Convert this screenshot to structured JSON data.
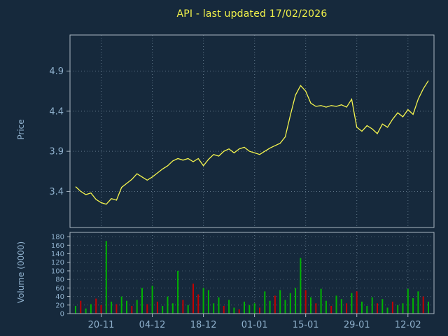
{
  "colors": {
    "background": "#16293c",
    "title": "#f2f24a",
    "axis_text": "#8fb0cc",
    "grid": "#5f7588",
    "border": "#a9b6c2",
    "price_line": "#f5f54e",
    "volume_up": "#00b400",
    "volume_down": "#c40000"
  },
  "chart_data": [
    {
      "type": "line",
      "name": "price-series",
      "title": "API - last updated 17/02/2026",
      "ylabel": "Price",
      "xlabel": "",
      "ylim": [
        2.95,
        5.35
      ],
      "yticks": [
        3.4,
        3.9,
        4.4,
        4.9
      ],
      "grid": "dotted",
      "legend": false,
      "x_tick_indices": [
        5,
        15,
        25,
        35,
        45,
        55,
        65
      ],
      "xticklabels": [
        "20-11",
        "04-12",
        "18-12",
        "01-01",
        "15-01",
        "29-01",
        "12-02"
      ],
      "values": [
        3.46,
        3.4,
        3.36,
        3.38,
        3.3,
        3.26,
        3.24,
        3.31,
        3.29,
        3.45,
        3.5,
        3.55,
        3.62,
        3.58,
        3.54,
        3.58,
        3.63,
        3.68,
        3.72,
        3.78,
        3.81,
        3.79,
        3.81,
        3.77,
        3.81,
        3.72,
        3.8,
        3.86,
        3.84,
        3.9,
        3.93,
        3.88,
        3.93,
        3.95,
        3.9,
        3.88,
        3.86,
        3.9,
        3.94,
        3.97,
        4.0,
        4.08,
        4.35,
        4.6,
        4.72,
        4.65,
        4.5,
        4.46,
        4.47,
        4.45,
        4.47,
        4.46,
        4.48,
        4.45,
        4.55,
        4.2,
        4.15,
        4.22,
        4.18,
        4.12,
        4.24,
        4.2,
        4.3,
        4.38,
        4.33,
        4.42,
        4.36,
        4.55,
        4.68,
        4.78
      ]
    },
    {
      "type": "bar",
      "name": "volume-series",
      "ylabel": "Volume (0000)",
      "xlabel": "",
      "ylim": [
        0,
        190
      ],
      "yticks": [
        0,
        20,
        40,
        60,
        80,
        100,
        120,
        140,
        160,
        180
      ],
      "grid": "dotted",
      "legend": false,
      "values": [
        18,
        30,
        12,
        22,
        35,
        20,
        170,
        28,
        22,
        40,
        30,
        18,
        32,
        60,
        22,
        65,
        28,
        18,
        40,
        24,
        100,
        32,
        20,
        70,
        45,
        60,
        55,
        24,
        38,
        18,
        32,
        14,
        10,
        28,
        20,
        24,
        14,
        52,
        30,
        42,
        55,
        32,
        48,
        60,
        130,
        55,
        38,
        24,
        58,
        30,
        18,
        42,
        34,
        24,
        48,
        52,
        28,
        18,
        38,
        24,
        34,
        14,
        28,
        20,
        24,
        58,
        36,
        52,
        40,
        28
      ],
      "directions": [
        "up",
        "down",
        "up",
        "up",
        "down",
        "down",
        "up",
        "up",
        "down",
        "up",
        "up",
        "down",
        "up",
        "up",
        "down",
        "up",
        "down",
        "up",
        "up",
        "up",
        "up",
        "down",
        "up",
        "down",
        "down",
        "up",
        "up",
        "up",
        "up",
        "down",
        "up",
        "up",
        "down",
        "up",
        "up",
        "up",
        "down",
        "up",
        "up",
        "down",
        "up",
        "up",
        "up",
        "up",
        "up",
        "down",
        "up",
        "down",
        "up",
        "up",
        "down",
        "up",
        "up",
        "down",
        "up",
        "down",
        "up",
        "up",
        "up",
        "down",
        "up",
        "up",
        "down",
        "up",
        "up",
        "up",
        "up",
        "up",
        "down",
        "up"
      ]
    }
  ]
}
